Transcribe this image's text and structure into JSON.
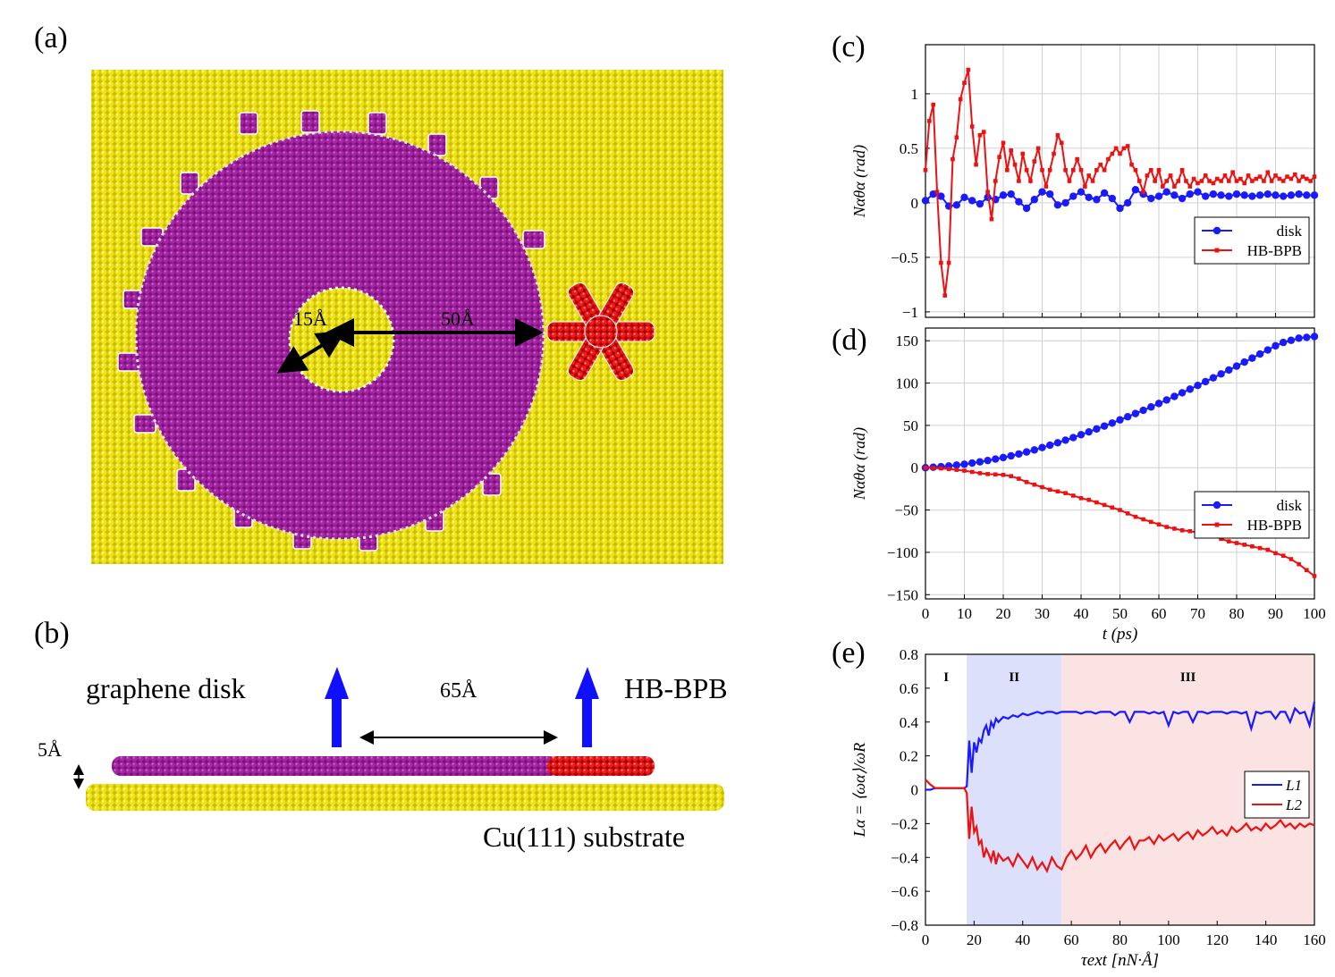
{
  "panels": {
    "a": "(a)",
    "b": "(b)",
    "c": "(c)",
    "d": "(d)",
    "e": "(e)"
  },
  "panel_a": {
    "inner_radius_label": "15Å",
    "outer_radius_label": "50Å"
  },
  "panel_b": {
    "left_label": "graphene disk",
    "right_label": "HB-BPB",
    "separation_label": "65Å",
    "height_label": "5Å",
    "substrate_label": "Cu(111) substrate"
  },
  "colors": {
    "substrate": "#e6d800",
    "disk": "#a020a0",
    "hbbpb": "#e01010",
    "disk_series": "#1a1aff",
    "hb_series": "#ee1111",
    "region_II": "#dde0fa",
    "region_III": "#fbe3e3"
  },
  "chart_data": [
    {
      "id": "c",
      "type": "line",
      "xlim": [
        0,
        100
      ],
      "ylim": [
        -1.05,
        1.45
      ],
      "yticks": [
        -1,
        -0.5,
        0,
        0.5,
        1
      ],
      "ytick_labels": [
        "−1",
        "−0.5",
        "0",
        "0.5",
        "1"
      ],
      "ylabel": "Nαθα (rad)",
      "legend": [
        "disk",
        "HB-BPB"
      ],
      "legend_position": "lower-right",
      "series": [
        {
          "name": "disk",
          "x": [
            0,
            2,
            4,
            6,
            8,
            10,
            12,
            14,
            16,
            18,
            20,
            22,
            24,
            26,
            28,
            30,
            32,
            34,
            36,
            38,
            40,
            42,
            44,
            46,
            48,
            50,
            52,
            54,
            56,
            58,
            60,
            62,
            64,
            66,
            68,
            70,
            72,
            74,
            76,
            78,
            80,
            82,
            84,
            86,
            88,
            90,
            92,
            94,
            96,
            98,
            100
          ],
          "y": [
            0.02,
            0.08,
            0.06,
            -0.03,
            -0.02,
            0.05,
            0.02,
            -0.01,
            0.05,
            0.03,
            0.07,
            0.08,
            0.01,
            -0.05,
            0.03,
            0.1,
            0.08,
            -0.02,
            0.0,
            0.06,
            0.1,
            0.05,
            0.03,
            0.09,
            0.04,
            -0.05,
            0.0,
            0.12,
            0.08,
            0.04,
            0.06,
            0.1,
            0.07,
            0.04,
            0.08,
            0.1,
            0.06,
            0.08,
            0.07,
            0.06,
            0.08,
            0.07,
            0.06,
            0.07,
            0.08,
            0.07,
            0.06,
            0.07,
            0.08,
            0.07,
            0.07
          ]
        },
        {
          "name": "HB-BPB",
          "x": [
            0,
            1,
            2,
            3,
            4,
            5,
            6,
            7,
            8,
            9,
            10,
            11,
            12,
            13,
            14,
            15,
            16,
            17,
            18,
            19,
            20,
            21,
            22,
            23,
            24,
            25,
            26,
            27,
            28,
            29,
            30,
            31,
            32,
            33,
            34,
            35,
            36,
            37,
            38,
            39,
            40,
            41,
            42,
            43,
            44,
            45,
            46,
            47,
            48,
            49,
            50,
            51,
            52,
            53,
            54,
            55,
            56,
            57,
            58,
            59,
            60,
            61,
            62,
            63,
            64,
            65,
            66,
            67,
            68,
            69,
            70,
            71,
            72,
            73,
            74,
            75,
            76,
            77,
            78,
            79,
            80,
            81,
            82,
            83,
            84,
            85,
            86,
            87,
            88,
            89,
            90,
            91,
            92,
            93,
            94,
            95,
            96,
            97,
            98,
            99,
            100
          ],
          "y": [
            0.3,
            0.75,
            0.9,
            0.1,
            -0.55,
            -0.85,
            -0.55,
            0.4,
            0.6,
            0.95,
            1.1,
            1.22,
            0.7,
            0.35,
            0.62,
            0.65,
            0.1,
            -0.15,
            0.2,
            0.42,
            0.55,
            0.3,
            0.48,
            0.35,
            0.2,
            0.45,
            0.3,
            0.2,
            0.38,
            0.5,
            0.3,
            0.15,
            0.3,
            0.45,
            0.62,
            0.55,
            0.3,
            0.2,
            0.3,
            0.4,
            0.3,
            0.15,
            0.25,
            0.2,
            0.3,
            0.35,
            0.3,
            0.4,
            0.45,
            0.5,
            0.45,
            0.5,
            0.52,
            0.35,
            0.3,
            0.2,
            0.1,
            0.25,
            0.3,
            0.2,
            0.3,
            0.15,
            0.2,
            0.25,
            0.15,
            0.2,
            0.3,
            0.2,
            0.15,
            0.22,
            0.18,
            0.2,
            0.25,
            0.2,
            0.18,
            0.22,
            0.2,
            0.25,
            0.2,
            0.28,
            0.2,
            0.22,
            0.18,
            0.25,
            0.2,
            0.22,
            0.24,
            0.2,
            0.28,
            0.2,
            0.25,
            0.22,
            0.2,
            0.24,
            0.22,
            0.26,
            0.2,
            0.24,
            0.22,
            0.2,
            0.24
          ]
        }
      ]
    },
    {
      "id": "d",
      "type": "line",
      "xlim": [
        0,
        100
      ],
      "ylim": [
        -155,
        165
      ],
      "xticks": [
        0,
        10,
        20,
        30,
        40,
        50,
        60,
        70,
        80,
        90,
        100
      ],
      "yticks": [
        -150,
        -100,
        -50,
        0,
        50,
        100,
        150
      ],
      "ytick_labels": [
        "−150",
        "−100",
        "−50",
        "0",
        "50",
        "100",
        "150"
      ],
      "xlabel": "t (ps)",
      "ylabel": "Nαθα (rad)",
      "legend": [
        "disk",
        "HB-BPB"
      ],
      "legend_position": "lower-right",
      "series": [
        {
          "name": "disk",
          "x": [
            0,
            2,
            4,
            6,
            8,
            10,
            12,
            14,
            16,
            18,
            20,
            22,
            24,
            26,
            28,
            30,
            32,
            34,
            36,
            38,
            40,
            42,
            44,
            46,
            48,
            50,
            52,
            54,
            56,
            58,
            60,
            62,
            64,
            66,
            68,
            70,
            72,
            74,
            76,
            78,
            80,
            82,
            84,
            86,
            88,
            90,
            92,
            94,
            96,
            98,
            100
          ],
          "y": [
            0,
            0.6,
            1.2,
            2,
            3.1,
            4.1,
            5.5,
            6.9,
            8.5,
            10.2,
            12,
            14,
            16.2,
            18.6,
            21,
            23.8,
            26.6,
            29.5,
            32.5,
            35.6,
            39,
            42.3,
            45.8,
            49.2,
            52.7,
            56.5,
            60.2,
            64,
            67.8,
            71.8,
            75.9,
            80,
            84.2,
            88.5,
            92.8,
            97.2,
            101.7,
            106.2,
            110.8,
            115.4,
            120,
            124.8,
            129.5,
            134.3,
            139.1,
            144,
            148,
            150.5,
            153,
            154,
            155
          ]
        },
        {
          "name": "HB-BPB",
          "x": [
            0,
            2,
            4,
            6,
            8,
            10,
            12,
            14,
            16,
            18,
            20,
            22,
            24,
            26,
            28,
            30,
            32,
            34,
            36,
            38,
            40,
            42,
            44,
            46,
            48,
            50,
            52,
            54,
            56,
            58,
            60,
            62,
            64,
            66,
            68,
            70,
            72,
            74,
            76,
            78,
            80,
            82,
            84,
            86,
            88,
            90,
            92,
            94,
            96,
            98,
            100
          ],
          "y": [
            0,
            -0.3,
            -0.8,
            -1.5,
            -2.5,
            -3.5,
            -5,
            -6.5,
            -7.5,
            -8,
            -8.5,
            -10,
            -13,
            -17,
            -20,
            -23,
            -26,
            -28,
            -30,
            -33,
            -36,
            -38,
            -41,
            -44,
            -47,
            -50,
            -54,
            -58,
            -61,
            -64,
            -67,
            -70,
            -72,
            -74,
            -75,
            -76.5,
            -78,
            -80,
            -84,
            -87,
            -89,
            -91,
            -93,
            -95,
            -97,
            -101,
            -104,
            -108,
            -114,
            -121,
            -128
          ]
        }
      ]
    },
    {
      "id": "e",
      "type": "line",
      "xlim": [
        0,
        160
      ],
      "ylim": [
        -0.8,
        0.8
      ],
      "xticks": [
        0,
        20,
        40,
        60,
        80,
        100,
        120,
        140,
        160
      ],
      "yticks": [
        -0.8,
        -0.6,
        -0.4,
        -0.2,
        0,
        0.2,
        0.4,
        0.6,
        0.8
      ],
      "ytick_labels": [
        "−0.8",
        "−0.6",
        "−0.4",
        "−0.2",
        "0",
        "0.2",
        "0.4",
        "0.6",
        "0.8"
      ],
      "xlabel": "τext [nN·Å]",
      "ylabel": "Lα = ⟨ωα⟩/ωR",
      "legend": [
        "L1",
        "L2"
      ],
      "legend_position": "lower-right",
      "regions": [
        {
          "label": "I",
          "from": 0,
          "to": 17
        },
        {
          "label": "II",
          "from": 17,
          "to": 56
        },
        {
          "label": "III",
          "from": 56,
          "to": 160
        }
      ],
      "series": [
        {
          "name": "L1",
          "x": [
            0,
            2,
            4,
            6,
            8,
            10,
            12,
            14,
            16,
            17,
            18,
            19,
            20,
            21,
            22,
            23,
            24,
            25,
            26,
            27,
            28,
            29,
            30,
            32,
            34,
            36,
            38,
            40,
            42,
            44,
            46,
            48,
            50,
            52,
            54,
            56,
            58,
            60,
            62,
            64,
            66,
            68,
            70,
            72,
            74,
            76,
            78,
            80,
            82,
            84,
            86,
            88,
            90,
            92,
            94,
            96,
            98,
            100,
            102,
            104,
            106,
            108,
            110,
            112,
            114,
            116,
            118,
            120,
            122,
            124,
            126,
            128,
            130,
            132,
            134,
            136,
            138,
            140,
            142,
            144,
            146,
            148,
            150,
            152,
            154,
            156,
            158,
            160
          ],
          "y": [
            0,
            0,
            0.01,
            0.01,
            0.01,
            0.01,
            0.01,
            0.01,
            0.01,
            0.02,
            0.29,
            0.1,
            0.28,
            0.22,
            0.3,
            0.28,
            0.35,
            0.38,
            0.32,
            0.4,
            0.37,
            0.42,
            0.4,
            0.43,
            0.42,
            0.44,
            0.43,
            0.45,
            0.44,
            0.45,
            0.46,
            0.45,
            0.46,
            0.46,
            0.45,
            0.46,
            0.46,
            0.46,
            0.46,
            0.45,
            0.46,
            0.46,
            0.45,
            0.46,
            0.46,
            0.46,
            0.44,
            0.46,
            0.46,
            0.4,
            0.46,
            0.46,
            0.46,
            0.45,
            0.46,
            0.45,
            0.46,
            0.38,
            0.46,
            0.45,
            0.46,
            0.46,
            0.4,
            0.46,
            0.46,
            0.45,
            0.46,
            0.46,
            0.46,
            0.45,
            0.46,
            0.46,
            0.45,
            0.46,
            0.36,
            0.46,
            0.45,
            0.46,
            0.46,
            0.42,
            0.46,
            0.46,
            0.4,
            0.48,
            0.45,
            0.46,
            0.38,
            0.52
          ]
        },
        {
          "name": "L2",
          "x": [
            0,
            2,
            4,
            6,
            8,
            10,
            12,
            14,
            16,
            17,
            18,
            19,
            20,
            21,
            22,
            23,
            24,
            25,
            26,
            27,
            28,
            29,
            30,
            32,
            34,
            36,
            38,
            40,
            42,
            44,
            46,
            48,
            50,
            52,
            54,
            56,
            58,
            60,
            62,
            64,
            66,
            68,
            70,
            72,
            74,
            76,
            78,
            80,
            82,
            84,
            86,
            88,
            90,
            92,
            94,
            96,
            98,
            100,
            102,
            104,
            106,
            108,
            110,
            112,
            114,
            116,
            118,
            120,
            122,
            124,
            126,
            128,
            130,
            132,
            134,
            136,
            138,
            140,
            142,
            144,
            146,
            148,
            150,
            152,
            154,
            156,
            158,
            160
          ],
          "y": [
            0.06,
            0.03,
            0.01,
            0.01,
            0.01,
            0.01,
            0.01,
            0.01,
            0.01,
            -0.02,
            -0.29,
            -0.1,
            -0.25,
            -0.22,
            -0.32,
            -0.3,
            -0.4,
            -0.35,
            -0.38,
            -0.42,
            -0.36,
            -0.44,
            -0.38,
            -0.42,
            -0.4,
            -0.45,
            -0.38,
            -0.42,
            -0.46,
            -0.4,
            -0.47,
            -0.43,
            -0.48,
            -0.4,
            -0.45,
            -0.47,
            -0.4,
            -0.36,
            -0.41,
            -0.38,
            -0.33,
            -0.4,
            -0.35,
            -0.32,
            -0.37,
            -0.33,
            -0.3,
            -0.35,
            -0.31,
            -0.28,
            -0.35,
            -0.3,
            -0.3,
            -0.28,
            -0.32,
            -0.27,
            -0.3,
            -0.28,
            -0.26,
            -0.3,
            -0.27,
            -0.25,
            -0.29,
            -0.24,
            -0.27,
            -0.25,
            -0.22,
            -0.26,
            -0.24,
            -0.27,
            -0.22,
            -0.25,
            -0.23,
            -0.2,
            -0.24,
            -0.22,
            -0.24,
            -0.2,
            -0.23,
            -0.21,
            -0.18,
            -0.22,
            -0.2,
            -0.23,
            -0.2,
            -0.22,
            -0.2,
            -0.21
          ]
        }
      ]
    }
  ]
}
